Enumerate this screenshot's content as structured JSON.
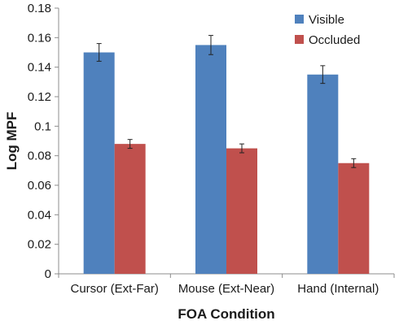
{
  "chart_data": {
    "type": "bar",
    "title": "",
    "xlabel": "FOA Condition",
    "ylabel": "Log MPF",
    "categories": [
      "Cursor (Ext-Far)",
      "Mouse (Ext-Near)",
      "Hand (Internal)"
    ],
    "series": [
      {
        "name": "Visible",
        "color": "#4f81bd",
        "values": [
          0.15,
          0.155,
          0.135
        ],
        "errors": [
          0.006,
          0.0065,
          0.006
        ]
      },
      {
        "name": "Occluded",
        "color": "#c0504d",
        "values": [
          0.088,
          0.085,
          0.075
        ],
        "errors": [
          0.003,
          0.003,
          0.003
        ]
      }
    ],
    "ylim": [
      0,
      0.18
    ],
    "yticks": [
      0,
      0.02,
      0.04,
      0.06,
      0.08,
      0.1,
      0.12,
      0.14,
      0.16,
      0.18
    ],
    "ytick_labels": [
      "0",
      "0.02",
      "0.04",
      "0.06",
      "0.08",
      "0.1",
      "0.12",
      "0.14",
      "0.16",
      "0.18"
    ],
    "grid": false,
    "legend_position": "top-right"
  }
}
